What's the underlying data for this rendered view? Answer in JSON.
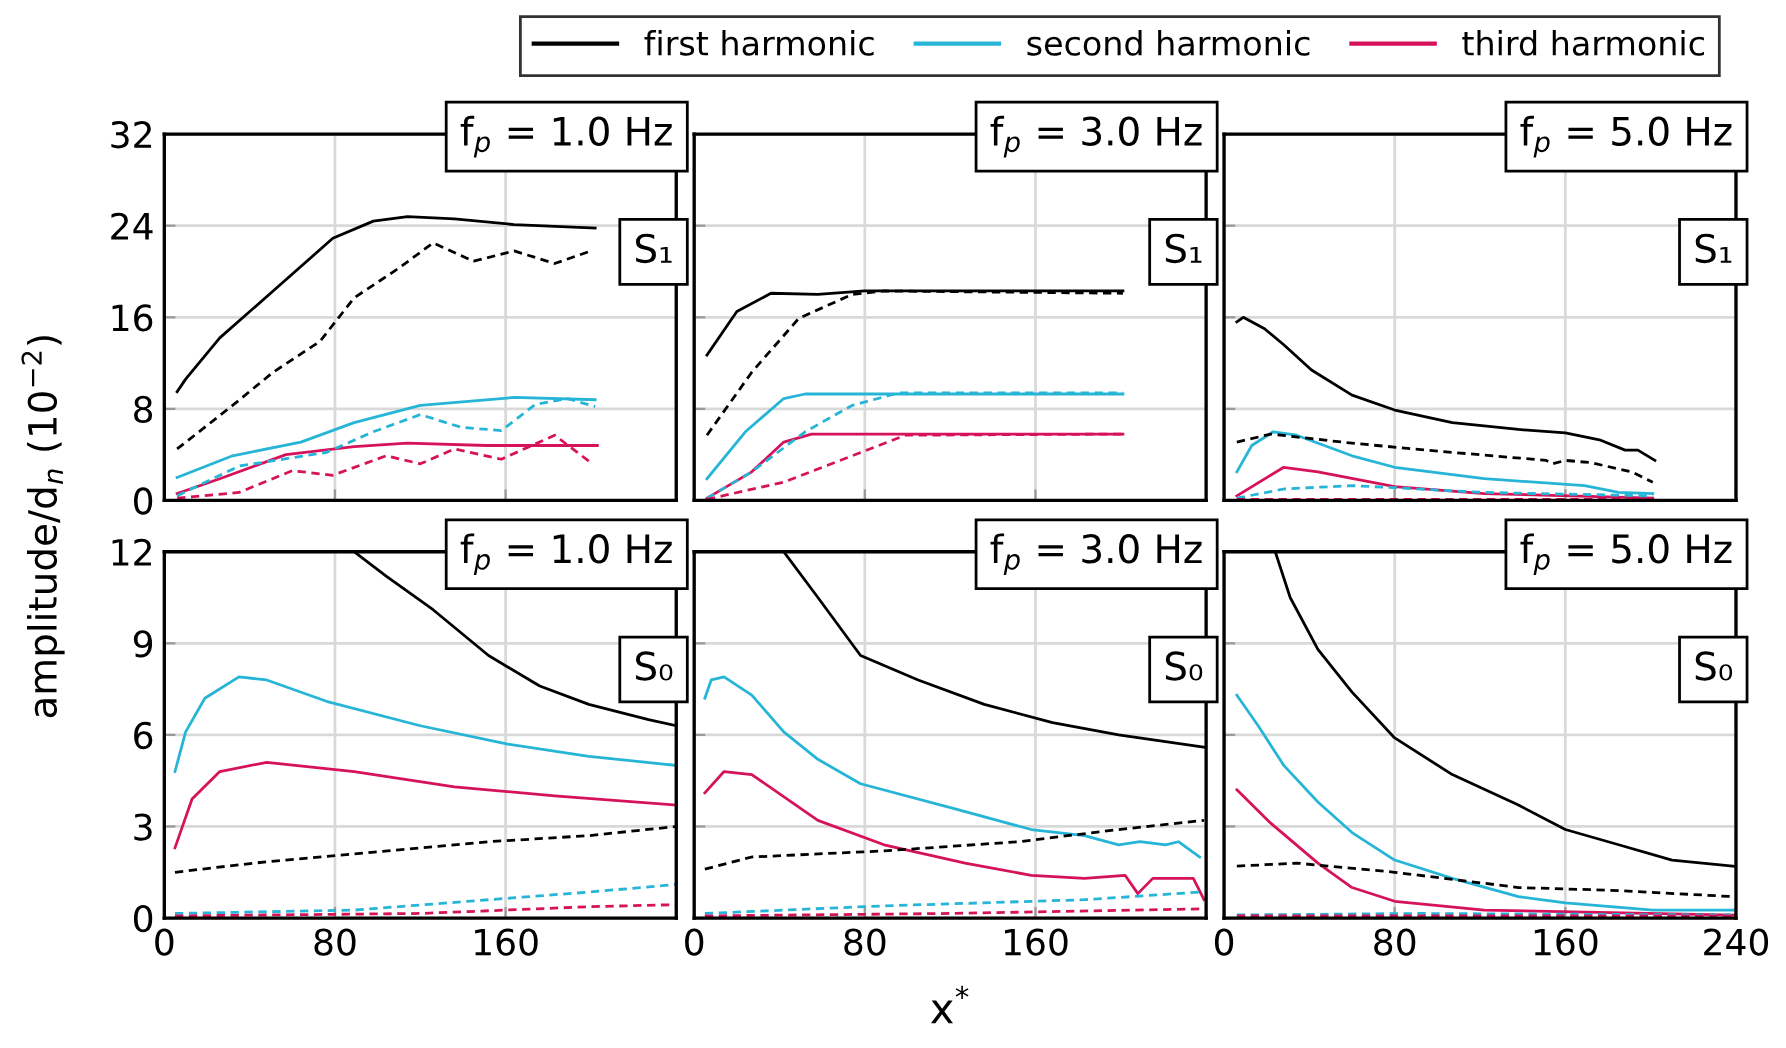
{
  "chart_data": [
    {
      "type": "line",
      "xlim": [
        0,
        240
      ],
      "ylim": [
        0,
        32
      ],
      "xticks": [
        0,
        80,
        160
      ],
      "yticks": [
        0,
        8,
        16,
        24,
        32
      ],
      "grid": true,
      "tick_labels": "y",
      "legend": "top",
      "ylabel": "amplitude/d$_{n}$ (10$^{−2}$)",
      "annotations": [
        "f$_{p}$ = 1.0 Hz",
        "S₁"
      ],
      "series": [
        {
          "name": "first harmonic",
          "color": "#000000",
          "line_style": "solid",
          "x": [
            6,
            10,
            26,
            51,
            79,
            98,
            114,
            136,
            164,
            202
          ],
          "values": [
            9.5,
            10.6,
            14.2,
            18.3,
            22.9,
            24.4,
            24.8,
            24.6,
            24.1,
            23.8
          ]
        },
        {
          "name": "second harmonic",
          "color": "#26b5d6",
          "line_style": "solid",
          "x": [
            6,
            32,
            64,
            89,
            120,
            164,
            202
          ],
          "values": [
            2.0,
            3.9,
            5.1,
            6.8,
            8.3,
            9.0,
            8.8
          ]
        },
        {
          "name": "third harmonic",
          "color": "#d6135a",
          "line_style": "solid",
          "x": [
            6,
            26,
            57,
            89,
            114,
            151,
            203
          ],
          "values": [
            0.6,
            1.9,
            4.0,
            4.7,
            5.0,
            4.8,
            4.8
          ]
        },
        {
          "color": "#000000",
          "line_style": "dashed",
          "x": [
            6,
            32,
            51,
            73,
            89,
            110,
            126,
            145,
            164,
            183,
            200
          ],
          "values": [
            4.5,
            8.3,
            11.2,
            13.9,
            17.7,
            20.3,
            22.5,
            20.9,
            21.8,
            20.7,
            21.8
          ]
        },
        {
          "color": "#26b5d6",
          "line_style": "dashed",
          "x": [
            6,
            35,
            76,
            98,
            120,
            139,
            158,
            174,
            189,
            202
          ],
          "values": [
            0.4,
            3.0,
            4.2,
            6.0,
            7.5,
            6.4,
            6.1,
            8.4,
            8.9,
            8.2
          ]
        },
        {
          "color": "#d6135a",
          "line_style": "dashed",
          "x": [
            6,
            35,
            60,
            79,
            104,
            120,
            136,
            158,
            183,
            200
          ],
          "values": [
            0.2,
            0.7,
            2.6,
            2.2,
            3.9,
            3.2,
            4.5,
            3.6,
            5.7,
            3.3
          ]
        }
      ]
    },
    {
      "type": "line",
      "xlim": [
        0,
        240
      ],
      "ylim": [
        0,
        32
      ],
      "xticks": [
        0,
        80,
        160
      ],
      "yticks": [
        0,
        8,
        16,
        24,
        32
      ],
      "grid": true,
      "tick_labels": false,
      "annotations": [
        "f$_{p}$ = 3.0 Hz",
        "S₁"
      ],
      "series": [
        {
          "color": "#000000",
          "line_style": "solid",
          "x": [
            6,
            20,
            36,
            58,
            80,
            201
          ],
          "values": [
            12.7,
            16.5,
            18.1,
            18.0,
            18.3,
            18.3
          ]
        },
        {
          "color": "#26b5d6",
          "line_style": "solid",
          "x": [
            6,
            24,
            42,
            52,
            201
          ],
          "values": [
            1.9,
            6.0,
            8.9,
            9.3,
            9.3
          ]
        },
        {
          "color": "#d6135a",
          "line_style": "solid",
          "x": [
            6,
            27,
            42,
            55,
            201
          ],
          "values": [
            0.2,
            2.5,
            5.1,
            5.8,
            5.8
          ]
        },
        {
          "color": "#000000",
          "line_style": "dashed",
          "x": [
            6,
            27,
            49,
            74,
            89,
            201
          ],
          "values": [
            5.7,
            11.2,
            15.9,
            18.0,
            18.3,
            18.1
          ]
        },
        {
          "color": "#26b5d6",
          "line_style": "dashed",
          "x": [
            6,
            27,
            52,
            74,
            96,
            201
          ],
          "values": [
            0.2,
            2.5,
            6.0,
            8.3,
            9.4,
            9.4
          ]
        },
        {
          "color": "#d6135a",
          "line_style": "dashed",
          "x": [
            6,
            42,
            74,
            99,
            201
          ],
          "values": [
            0.1,
            1.6,
            3.9,
            5.7,
            5.8
          ]
        }
      ]
    },
    {
      "type": "line",
      "xlim": [
        0,
        240
      ],
      "ylim": [
        0,
        32
      ],
      "xticks": [
        0,
        80,
        160,
        240
      ],
      "yticks": [
        0,
        8,
        16,
        24,
        32
      ],
      "grid": true,
      "tick_labels": false,
      "annotations": [
        "f$_{p}$ = 5.0 Hz",
        "S₁"
      ],
      "series": [
        {
          "color": "#000000",
          "line_style": "solid",
          "x": [
            6,
            9,
            19,
            28,
            41,
            60,
            80,
            107,
            138,
            160,
            176,
            188,
            194,
            202
          ],
          "values": [
            15.6,
            16.0,
            15.0,
            13.6,
            11.4,
            9.2,
            7.9,
            6.8,
            6.2,
            5.9,
            5.3,
            4.4,
            4.4,
            3.5
          ]
        },
        {
          "color": "#26b5d6",
          "line_style": "solid",
          "x": [
            6,
            13,
            23,
            34,
            60,
            80,
            122,
            169,
            185,
            201
          ],
          "values": [
            2.5,
            4.8,
            6.0,
            5.7,
            3.9,
            2.9,
            1.9,
            1.3,
            0.7,
            0.6
          ]
        },
        {
          "color": "#d6135a",
          "line_style": "solid",
          "x": [
            6,
            28,
            44,
            80,
            122,
            201
          ],
          "values": [
            0.4,
            2.9,
            2.5,
            1.2,
            0.6,
            0.2
          ]
        },
        {
          "color": "#000000",
          "line_style": "dashed",
          "x": [
            6,
            22,
            60,
            107,
            151,
            154,
            160,
            172,
            191,
            201
          ],
          "values": [
            5.1,
            5.8,
            5.0,
            4.2,
            3.5,
            3.2,
            3.5,
            3.3,
            2.5,
            1.6
          ]
        },
        {
          "color": "#26b5d6",
          "line_style": "dashed",
          "x": [
            6,
            28,
            60,
            122,
            201
          ],
          "values": [
            0.2,
            1.0,
            1.3,
            0.7,
            0.4
          ]
        },
        {
          "color": "#d6135a",
          "line_style": "dashed",
          "x": [
            6,
            100,
            201
          ],
          "values": [
            0.1,
            0.1,
            0.1
          ]
        }
      ]
    },
    {
      "type": "line",
      "xlim": [
        0,
        240
      ],
      "ylim": [
        0,
        12
      ],
      "xticks": [
        0,
        80,
        160
      ],
      "yticks": [
        0,
        3,
        6,
        9,
        12
      ],
      "grid": true,
      "annotations": [
        "f$_{p}$ = 1.0 Hz",
        "S₀"
      ],
      "series": [
        {
          "color": "#000000",
          "line_style": "solid",
          "x": [
            89,
            104,
            126,
            152,
            176,
            199,
            227,
            240
          ],
          "values": [
            12,
            11.2,
            10.1,
            8.6,
            7.6,
            7.0,
            6.5,
            6.3
          ]
        },
        {
          "color": "#26b5d6",
          "line_style": "solid",
          "x": [
            5,
            10,
            19,
            35,
            48,
            76,
            120,
            161,
            199,
            240
          ],
          "values": [
            4.8,
            6.1,
            7.2,
            7.9,
            7.8,
            7.1,
            6.3,
            5.7,
            5.3,
            5.0
          ]
        },
        {
          "color": "#d6135a",
          "line_style": "solid",
          "x": [
            5,
            13,
            26,
            48,
            89,
            136,
            183,
            240
          ],
          "values": [
            2.3,
            3.9,
            4.8,
            5.1,
            4.8,
            4.3,
            4.0,
            3.7
          ]
        },
        {
          "color": "#000000",
          "line_style": "dashed",
          "x": [
            5,
            42,
            89,
            152,
            199,
            240
          ],
          "values": [
            1.5,
            1.8,
            2.1,
            2.5,
            2.7,
            3.0
          ]
        },
        {
          "color": "#26b5d6",
          "line_style": "dashed",
          "x": [
            5,
            89,
            152,
            199,
            240
          ],
          "values": [
            0.15,
            0.26,
            0.6,
            0.85,
            1.1
          ]
        },
        {
          "color": "#d6135a",
          "line_style": "dashed",
          "x": [
            5,
            120,
            199,
            240
          ],
          "values": [
            0.07,
            0.15,
            0.37,
            0.44
          ]
        }
      ]
    },
    {
      "type": "line",
      "xlim": [
        0,
        240
      ],
      "ylim": [
        0,
        12
      ],
      "xticks": [
        0,
        80,
        160
      ],
      "yticks": [
        0,
        3,
        6,
        9,
        12
      ],
      "grid": true,
      "tick_labels": "x",
      "xlabel": "x$^{*}$",
      "annotations": [
        "f$_{p}$ = 3.0 Hz",
        "S₀"
      ],
      "series": [
        {
          "color": "#000000",
          "line_style": "solid",
          "x": [
            42,
            58,
            78,
            105,
            136,
            168,
            199,
            239
          ],
          "values": [
            12,
            10.5,
            8.6,
            7.8,
            7.0,
            6.4,
            6.0,
            5.6
          ]
        },
        {
          "color": "#26b5d6",
          "line_style": "solid",
          "x": [
            5,
            8,
            14,
            27,
            42,
            58,
            78,
            121,
            158,
            183,
            199,
            209,
            221,
            227,
            237
          ],
          "values": [
            7.2,
            7.8,
            7.9,
            7.3,
            6.1,
            5.2,
            4.4,
            3.6,
            2.9,
            2.7,
            2.4,
            2.5,
            2.4,
            2.5,
            2.0
          ]
        },
        {
          "color": "#d6135a",
          "line_style": "solid",
          "x": [
            5,
            14,
            27,
            58,
            89,
            127,
            158,
            183,
            202,
            208,
            215,
            234,
            239
          ],
          "values": [
            4.1,
            4.8,
            4.7,
            3.2,
            2.4,
            1.8,
            1.4,
            1.3,
            1.4,
            0.8,
            1.3,
            1.3,
            0.6
          ]
        },
        {
          "color": "#000000",
          "line_style": "dashed",
          "x": [
            5,
            27,
            89,
            152,
            199,
            239
          ],
          "values": [
            1.6,
            2.0,
            2.2,
            2.5,
            2.9,
            3.2
          ]
        },
        {
          "color": "#26b5d6",
          "line_style": "dashed",
          "x": [
            5,
            89,
            183,
            239
          ],
          "values": [
            0.15,
            0.4,
            0.6,
            0.86
          ]
        },
        {
          "color": "#d6135a",
          "line_style": "dashed",
          "x": [
            5,
            120,
            239
          ],
          "values": [
            0.07,
            0.15,
            0.3
          ]
        }
      ]
    },
    {
      "type": "line",
      "xlim": [
        0,
        240
      ],
      "ylim": [
        0,
        12
      ],
      "xticks": [
        0,
        80,
        160,
        240
      ],
      "yticks": [
        0,
        3,
        6,
        9,
        12
      ],
      "grid": true,
      "tick_labels": "x",
      "annotations": [
        "f$_{p}$ = 5.0 Hz",
        "S₀"
      ],
      "series": [
        {
          "color": "#000000",
          "line_style": "solid",
          "x": [
            24,
            31,
            44,
            60,
            80,
            107,
            138,
            160,
            185,
            210,
            239
          ],
          "values": [
            12,
            10.5,
            8.8,
            7.4,
            5.9,
            4.7,
            3.7,
            2.9,
            2.4,
            1.9,
            1.7
          ]
        },
        {
          "color": "#26b5d6",
          "line_style": "solid",
          "x": [
            6,
            16,
            28,
            44,
            60,
            80,
            107,
            138,
            160,
            201,
            239
          ],
          "values": [
            7.3,
            6.3,
            5.0,
            3.8,
            2.8,
            1.9,
            1.3,
            0.7,
            0.5,
            0.26,
            0.26
          ]
        },
        {
          "color": "#d6135a",
          "line_style": "solid",
          "x": [
            6,
            22,
            44,
            60,
            80,
            122,
            239
          ],
          "values": [
            4.2,
            3.1,
            1.8,
            1.0,
            0.55,
            0.26,
            0.1
          ]
        },
        {
          "color": "#000000",
          "line_style": "dashed",
          "x": [
            6,
            34,
            80,
            138,
            185,
            239
          ],
          "values": [
            1.7,
            1.8,
            1.5,
            1.0,
            0.9,
            0.7
          ]
        },
        {
          "color": "#26b5d6",
          "line_style": "dashed",
          "x": [
            6,
            91,
            239
          ],
          "values": [
            0.1,
            0.15,
            0.1
          ]
        },
        {
          "color": "#d6135a",
          "line_style": "dashed",
          "x": [
            6,
            239
          ],
          "values": [
            0.07,
            0.07
          ]
        }
      ]
    }
  ]
}
